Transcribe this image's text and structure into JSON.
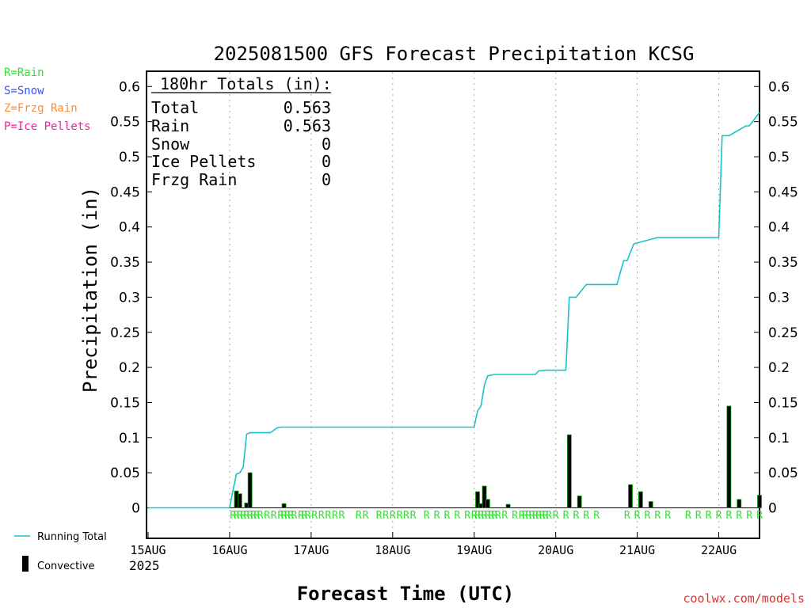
{
  "chart_data": {
    "type": "bar",
    "title": "2025081500 GFS Forecast Precipitation KCSG",
    "xlabel": "Forecast Time (UTC)",
    "ylabel": "Precipitation (in)",
    "ylim": [
      -0.038,
      0.62
    ],
    "yticks": [
      0,
      0.05,
      0.1,
      0.15,
      0.2,
      0.25,
      0.3,
      0.35,
      0.4,
      0.45,
      0.5,
      0.55,
      0.6
    ],
    "ytick_labels": [
      "0",
      "0.05",
      "0.1",
      "0.15",
      "0.2",
      "0.25",
      "0.3",
      "0.35",
      "0.4",
      "0.45",
      "0.5",
      "0.55",
      "0.6"
    ],
    "xlim_hours": [
      0,
      180
    ],
    "day_ticks": [
      {
        "hour": 0,
        "label": "15AUG"
      },
      {
        "hour": 24,
        "label": "16AUG"
      },
      {
        "hour": 48,
        "label": "17AUG"
      },
      {
        "hour": 72,
        "label": "18AUG"
      },
      {
        "hour": 96,
        "label": "19AUG"
      },
      {
        "hour": 120,
        "label": "20AUG"
      },
      {
        "hour": 144,
        "label": "21AUG"
      },
      {
        "hour": 168,
        "label": "22AUG"
      }
    ],
    "year_label": "2025",
    "grid": "vertical dotted lines at each day",
    "series": [
      {
        "name": "Running Total",
        "color": "#17c3c9",
        "x": [
          0,
          24,
          25,
          26,
          27,
          28,
          29,
          30,
          36,
          38,
          39,
          42,
          96,
          97,
          98,
          99,
          100,
          102,
          114,
          115,
          117,
          120,
          123,
          124,
          126,
          129,
          135,
          138,
          140,
          141,
          143,
          150,
          168,
          169,
          171,
          176,
          177,
          180
        ],
        "y": [
          0,
          0,
          0.025,
          0.048,
          0.05,
          0.058,
          0.105,
          0.107,
          0.107,
          0.114,
          0.115,
          0.115,
          0.115,
          0.138,
          0.145,
          0.175,
          0.188,
          0.19,
          0.19,
          0.195,
          0.196,
          0.196,
          0.196,
          0.3,
          0.3,
          0.318,
          0.318,
          0.318,
          0.352,
          0.352,
          0.376,
          0.385,
          0.385,
          0.53,
          0.53,
          0.544,
          0.544,
          0.563
        ]
      },
      {
        "name": "Convective",
        "color": "#000000",
        "edge_color": "#00aa00",
        "x": [
          26,
          27,
          29,
          30,
          40,
          97,
          98,
          99,
          100,
          106,
          124,
          127,
          142,
          145,
          148,
          171,
          174,
          180
        ],
        "values": [
          0.024,
          0.02,
          0.007,
          0.05,
          0.006,
          0.023,
          0.006,
          0.031,
          0.012,
          0.005,
          0.104,
          0.017,
          0.033,
          0.023,
          0.009,
          0.145,
          0.012,
          0.018
        ]
      }
    ],
    "rain_marker": "R",
    "rain_hours": [
      25,
      26,
      27,
      28,
      29,
      30,
      31,
      32,
      33,
      35,
      37,
      39,
      40,
      41,
      42,
      43,
      45,
      46,
      47,
      49,
      51,
      53,
      55,
      57,
      62,
      64,
      68,
      70,
      72,
      74,
      76,
      78,
      82,
      85,
      88,
      91,
      94,
      96,
      97,
      98,
      99,
      100,
      101,
      102,
      103,
      105,
      108,
      110,
      111,
      112,
      113,
      114,
      115,
      116,
      117,
      118,
      120,
      123,
      126,
      129,
      132,
      141,
      144,
      147,
      150,
      153,
      159,
      162,
      165,
      168,
      171,
      174,
      177,
      180
    ],
    "legend": [
      {
        "label": "Running Total",
        "color": "#17c3c9",
        "kind": "line"
      },
      {
        "label": "Convective",
        "color": "#000000",
        "kind": "bar"
      }
    ],
    "ptype_key": [
      {
        "label": "R=Rain",
        "color": "#33dd33"
      },
      {
        "label": "S=Snow",
        "color": "#3355ee"
      },
      {
        "label": "Z=Frzg Rain",
        "color": "#ff8c33"
      },
      {
        "label": "P=Ice Pellets",
        "color": "#ee2299"
      }
    ],
    "totals_box": {
      "header": "180hr Totals (in):",
      "rows": [
        {
          "label": "Total",
          "value": "0.563"
        },
        {
          "label": "Rain",
          "value": "0.563"
        },
        {
          "label": "Snow",
          "value": "0"
        },
        {
          "label": "Ice Pellets",
          "value": "0"
        },
        {
          "label": "Frzg Rain",
          "value": "0"
        }
      ]
    },
    "credit": "coolwx.com/models"
  }
}
